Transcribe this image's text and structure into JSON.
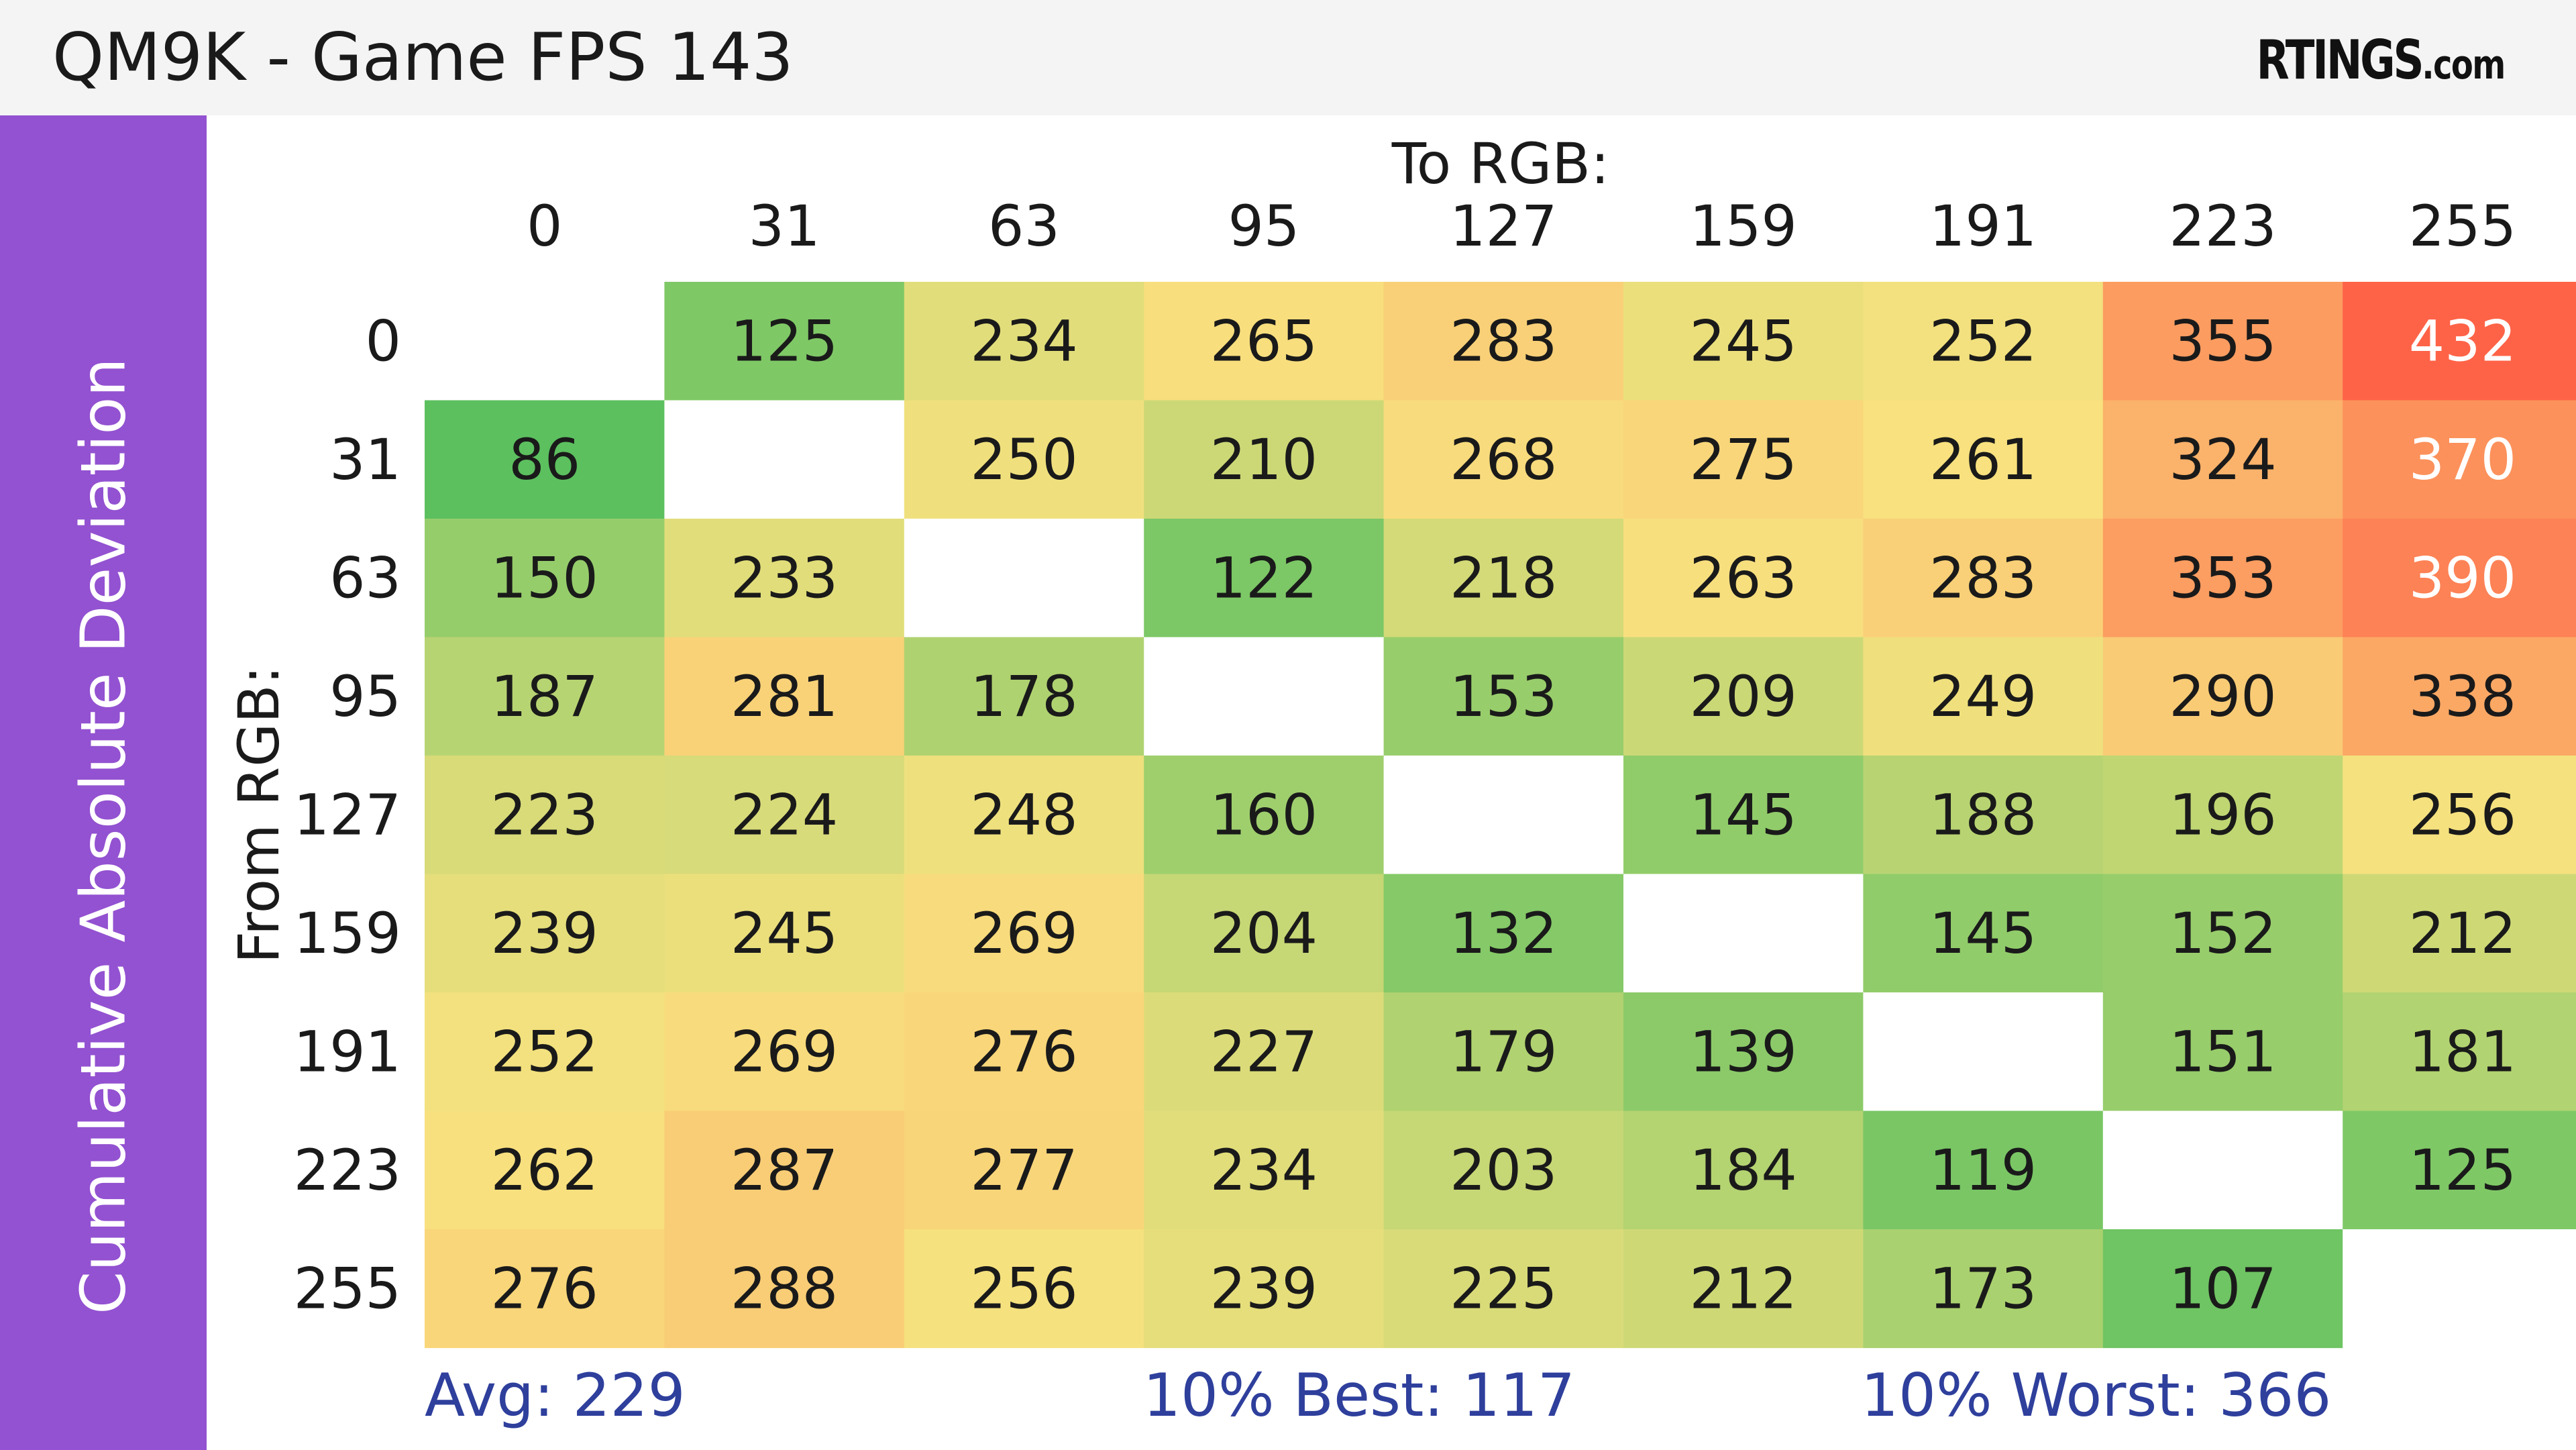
{
  "header": {
    "title": "QM9K - Game FPS 143",
    "brand_main": "RTINGS",
    "brand_suffix": ".com"
  },
  "sidebar": {
    "label": "Cumulative Absolute Deviation"
  },
  "chart_data": {
    "type": "heatmap",
    "title": "QM9K - Game FPS 143",
    "xlabel": "To RGB:",
    "ylabel": "From RGB:",
    "x": [
      "0",
      "31",
      "63",
      "95",
      "127",
      "159",
      "191",
      "223",
      "255"
    ],
    "y": [
      "0",
      "31",
      "63",
      "95",
      "127",
      "159",
      "191",
      "223",
      "255"
    ],
    "values": [
      [
        null,
        125,
        234,
        265,
        283,
        245,
        252,
        355,
        432
      ],
      [
        86,
        null,
        250,
        210,
        268,
        275,
        261,
        324,
        370
      ],
      [
        150,
        233,
        null,
        122,
        218,
        263,
        283,
        353,
        390
      ],
      [
        187,
        281,
        178,
        null,
        153,
        209,
        249,
        290,
        338
      ],
      [
        223,
        224,
        248,
        160,
        null,
        145,
        188,
        196,
        256
      ],
      [
        239,
        245,
        269,
        204,
        132,
        null,
        145,
        152,
        212
      ],
      [
        252,
        269,
        276,
        227,
        179,
        139,
        null,
        151,
        181
      ],
      [
        262,
        287,
        277,
        234,
        203,
        184,
        119,
        null,
        125
      ],
      [
        276,
        288,
        256,
        239,
        225,
        212,
        173,
        107,
        null
      ]
    ],
    "colors": {
      "scale": [
        "#5cc05f",
        "#f8e27f",
        "#ff6347"
      ],
      "empty_cell": "#ffffff",
      "light_text": "#ffffff",
      "dark_text": "#1a1a1a"
    }
  },
  "footer": {
    "avg": "Avg: 229",
    "best": "10% Best: 117",
    "worst": "10% Worst: 366"
  }
}
